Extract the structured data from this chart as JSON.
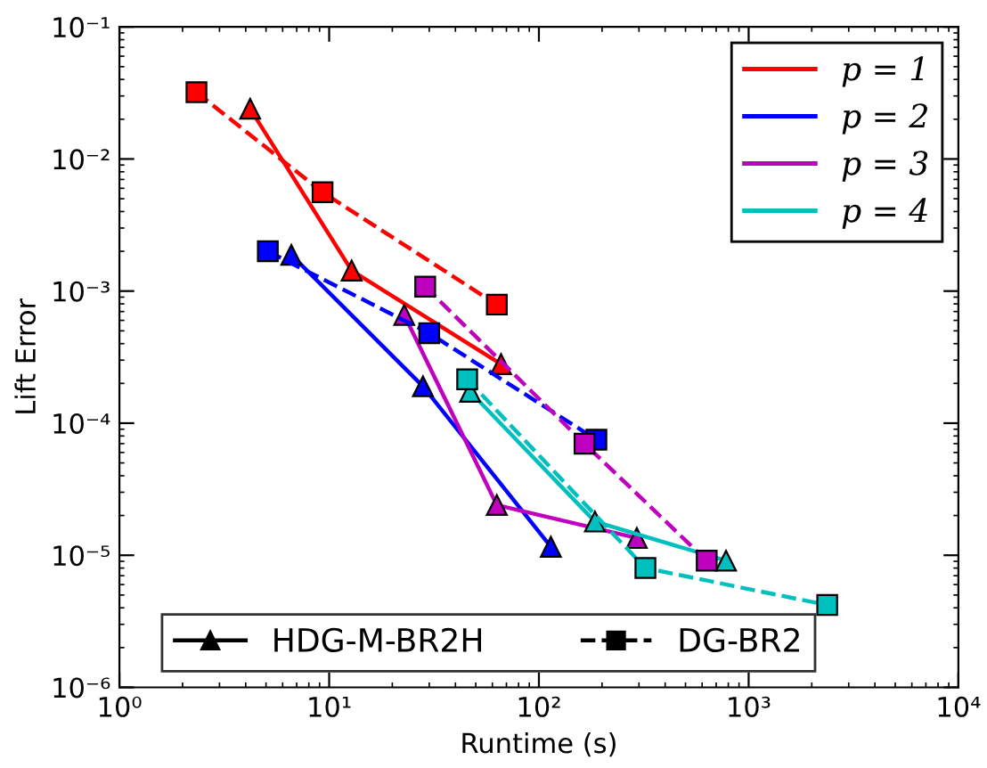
{
  "chart_data": {
    "type": "line",
    "xlabel": "Runtime (s)",
    "ylabel": "Lift Error",
    "log": "xy",
    "xlim": [
      1,
      10000
    ],
    "ylim": [
      1e-06,
      0.1
    ],
    "xticks": [
      {
        "value": 1,
        "label": "10⁰"
      },
      {
        "value": 10,
        "label": "10¹"
      },
      {
        "value": 100,
        "label": "10²"
      },
      {
        "value": 1000,
        "label": "10³"
      },
      {
        "value": 10000,
        "label": "10⁴"
      }
    ],
    "yticks": [
      {
        "value": 1e-06,
        "label": "10⁻⁶"
      },
      {
        "value": 1e-05,
        "label": "10⁻⁵"
      },
      {
        "value": 0.0001,
        "label": "10⁻⁴"
      },
      {
        "value": 0.001,
        "label": "10⁻³"
      },
      {
        "value": 0.01,
        "label": "10⁻²"
      },
      {
        "value": 0.1,
        "label": "10⁻¹"
      }
    ],
    "grid": false,
    "legend": "top right",
    "annotations": [
      "HDG-M-BR2H",
      "DG-BR2"
    ],
    "series": [
      {
        "name": "p = 1",
        "color": "#ff0000",
        "marker": "triangle",
        "line_style": "solid",
        "x": [
          4.2,
          12.8,
          66
        ],
        "values": [
          0.024,
          0.00143,
          0.00028
        ]
      },
      {
        "name": "p = 2",
        "color": "#0000ff",
        "marker": "triangle",
        "line_style": "solid",
        "x": [
          6.6,
          28,
          114
        ],
        "values": [
          0.00188,
          0.00019,
          1.16e-05
        ]
      },
      {
        "name": "p = 3",
        "color": "#bf00bf",
        "marker": "triangle",
        "line_style": "solid",
        "x": [
          22.8,
          63,
          293
        ],
        "values": [
          0.00066,
          2.4e-05,
          1.35e-05
        ]
      },
      {
        "name": "p = 4",
        "color": "#00bfbf",
        "marker": "triangle",
        "line_style": "solid",
        "x": [
          47,
          185,
          780
        ],
        "values": [
          0.000173,
          1.8e-05,
          9.1e-06
        ]
      },
      {
        "color": "#ff0000",
        "marker": "square",
        "line_style": "dashed",
        "x": [
          2.33,
          9.3,
          63
        ],
        "values": [
          0.032,
          0.0056,
          0.00079
        ]
      },
      {
        "color": "#0000ff",
        "marker": "square",
        "line_style": "dashed",
        "x": [
          5.1,
          30,
          188
        ],
        "values": [
          0.002,
          0.00048,
          7.5e-05
        ]
      },
      {
        "color": "#bf00bf",
        "marker": "square",
        "line_style": "dashed",
        "x": [
          28.7,
          165,
          631
        ],
        "values": [
          0.00108,
          7e-05,
          9.1e-06
        ]
      },
      {
        "color": "#00bfbf",
        "marker": "square",
        "line_style": "dashed",
        "x": [
          45.5,
          322,
          2370
        ],
        "values": [
          0.000215,
          8e-06,
          4.2e-06
        ]
      }
    ]
  }
}
